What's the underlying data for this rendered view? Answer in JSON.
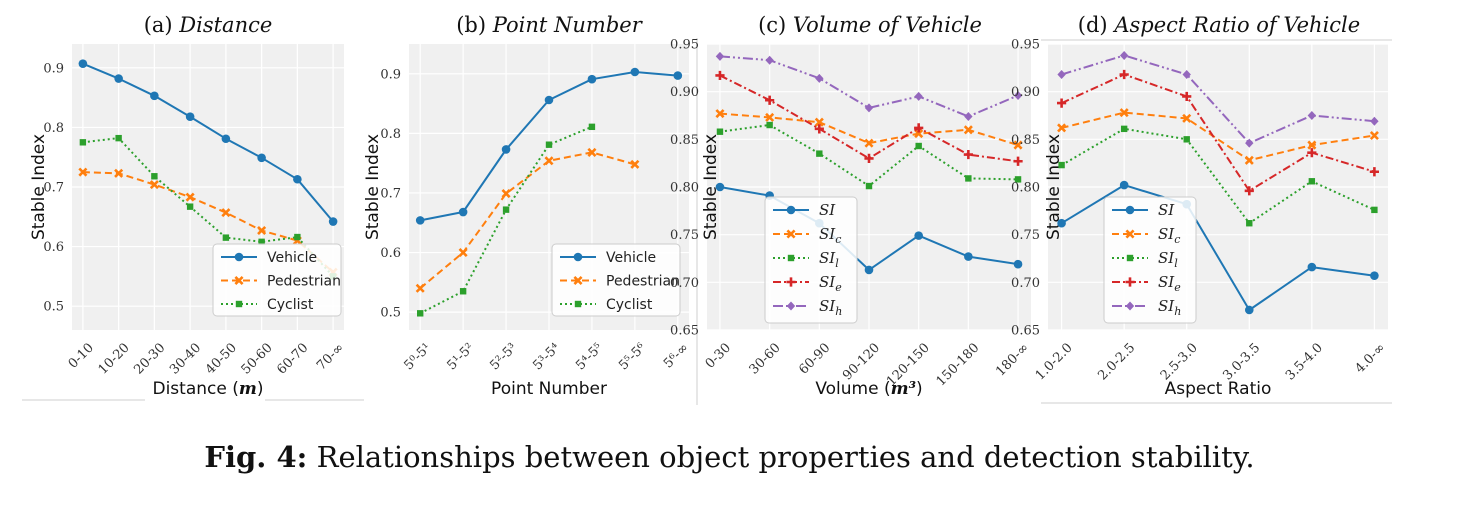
{
  "caption": {
    "label": "Fig. 4:",
    "text": " Relationships between object properties and detection stability."
  },
  "chart_data": [
    {
      "type": "line",
      "title_prefix": "(a) ",
      "title_italic": "Distance",
      "ylabel": "Stable Index",
      "xlabel": "Distance (",
      "xlabel_math": "m",
      "xlabel_suffix": ")",
      "ylim": [
        0.46,
        0.94
      ],
      "yticks": [
        "0.5",
        "0.6",
        "0.7",
        "0.8",
        "0.9"
      ],
      "categories": [
        "0-10",
        "10-20",
        "20-30",
        "30-40",
        "40-50",
        "50-60",
        "60-70",
        "70-∞"
      ],
      "legend_position": "lower-right",
      "series": [
        {
          "name": "Vehicle",
          "values": [
            0.907,
            0.882,
            0.853,
            0.818,
            0.781,
            0.749,
            0.713,
            0.642
          ]
        },
        {
          "name": "Pedestrian",
          "values": [
            0.725,
            0.723,
            0.704,
            0.683,
            0.657,
            0.627,
            0.61,
            0.557
          ]
        },
        {
          "name": "Cyclist",
          "values": [
            0.775,
            0.782,
            0.718,
            0.667,
            0.615,
            0.608,
            0.616,
            0.55
          ]
        }
      ]
    },
    {
      "type": "line",
      "title_prefix": "(b) ",
      "title_italic": "Point Number",
      "ylabel": "Stable Index",
      "xlabel": "Point Number",
      "ylim": [
        0.47,
        0.95
      ],
      "yticks": [
        "0.5",
        "0.6",
        "0.7",
        "0.8",
        "0.9"
      ],
      "categories": [
        "5⁰-5¹",
        "5¹-5²",
        "5²-5³",
        "5³-5⁴",
        "5⁴-5⁵",
        "5⁵-5⁶",
        "5⁶-∞"
      ],
      "legend_position": "lower-right",
      "series": [
        {
          "name": "Vehicle",
          "values": [
            0.654,
            0.668,
            0.773,
            0.856,
            0.891,
            0.903,
            0.897
          ]
        },
        {
          "name": "Pedestrian",
          "values": [
            0.54,
            0.6,
            0.699,
            0.754,
            0.768,
            0.748,
            null
          ]
        },
        {
          "name": "Cyclist",
          "values": [
            0.498,
            0.535,
            0.672,
            0.781,
            0.811,
            null,
            null
          ]
        }
      ]
    },
    {
      "type": "line",
      "title_prefix": "(c) ",
      "title_italic": "Volume of Vehicle",
      "ylabel": "Stable Index",
      "xlabel": "Volume (",
      "xlabel_math": "m³",
      "xlabel_suffix": ")",
      "ylim": [
        0.65,
        0.95
      ],
      "yticks": [
        "0.65",
        "0.70",
        "0.75",
        "0.80",
        "0.85",
        "0.90",
        "0.95"
      ],
      "categories": [
        "0-30",
        "30-60",
        "60-90",
        "90-120",
        "120-150",
        "150-180",
        "180-∞"
      ],
      "legend_position": "lower-left",
      "series": [
        {
          "name": "SI",
          "sub": "",
          "values": [
            0.8,
            0.791,
            0.762,
            0.713,
            0.749,
            0.727,
            0.719
          ]
        },
        {
          "name": "SI",
          "sub": "c",
          "values": [
            0.877,
            0.873,
            0.868,
            0.846,
            0.856,
            0.86,
            0.844
          ]
        },
        {
          "name": "SI",
          "sub": "l",
          "values": [
            0.858,
            0.865,
            0.835,
            0.801,
            0.843,
            0.809,
            0.808
          ]
        },
        {
          "name": "SI",
          "sub": "e",
          "values": [
            0.917,
            0.891,
            0.861,
            0.83,
            0.862,
            0.834,
            0.827
          ]
        },
        {
          "name": "SI",
          "sub": "h",
          "values": [
            0.937,
            0.933,
            0.914,
            0.883,
            0.895,
            0.874,
            0.896
          ]
        }
      ]
    },
    {
      "type": "line",
      "title_prefix": "(d) ",
      "title_italic": "Aspect Ratio of Vehicle",
      "ylabel": "Stable Index",
      "xlabel": "Aspect Ratio",
      "ylim": [
        0.65,
        0.95
      ],
      "yticks": [
        "0.65",
        "0.70",
        "0.75",
        "0.80",
        "0.85",
        "0.90",
        "0.95"
      ],
      "categories": [
        "1.0-2.0",
        "2.0-2.5",
        "2.5-3.0",
        "3.0-3.5",
        "3.5-4.0",
        "4.0-∞"
      ],
      "legend_position": "lower-left",
      "series": [
        {
          "name": "SI",
          "sub": "",
          "values": [
            0.762,
            0.802,
            0.782,
            0.671,
            0.716,
            0.707
          ]
        },
        {
          "name": "SI",
          "sub": "c",
          "values": [
            0.862,
            0.878,
            0.872,
            0.828,
            0.844,
            0.854
          ]
        },
        {
          "name": "SI",
          "sub": "l",
          "values": [
            0.823,
            0.861,
            0.85,
            0.762,
            0.806,
            0.776
          ]
        },
        {
          "name": "SI",
          "sub": "e",
          "values": [
            0.888,
            0.918,
            0.895,
            0.796,
            0.836,
            0.816
          ]
        },
        {
          "name": "SI",
          "sub": "h",
          "values": [
            0.918,
            0.938,
            0.918,
            0.846,
            0.875,
            0.869
          ]
        }
      ]
    }
  ],
  "colors": {
    "blue": "#1f77b4",
    "orange": "#ff7f0e",
    "green": "#2ca02c",
    "red": "#d62728",
    "purple": "#9467bd",
    "panel_bg": "#f0f0f0",
    "grid": "#ffffff"
  }
}
